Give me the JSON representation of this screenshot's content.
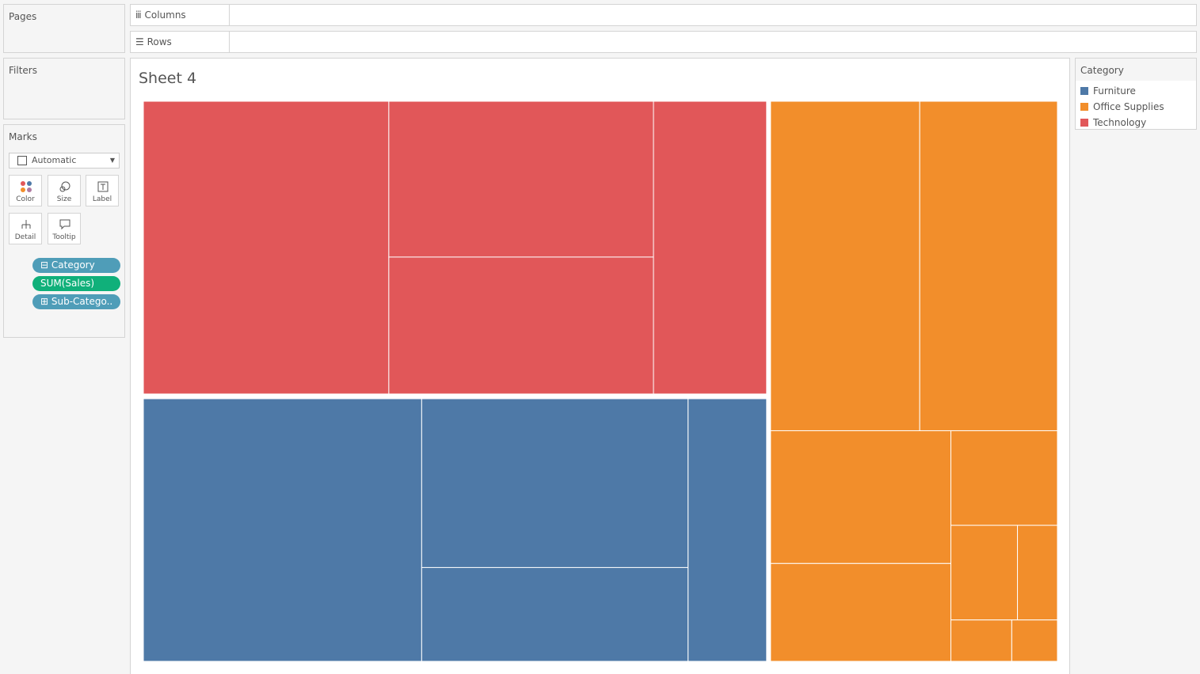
{
  "shelves": {
    "pages": "Pages",
    "filters": "Filters",
    "columns": "Columns",
    "rows": "Rows"
  },
  "marks": {
    "title": "Marks",
    "mark_type": "Automatic",
    "buttons": [
      "Color",
      "Size",
      "Label",
      "Detail",
      "Tooltip"
    ],
    "pills": [
      "Category",
      "SUM(Sales)",
      "Sub-Catego.."
    ]
  },
  "chart_data": {
    "type": "treemap",
    "title": "Sheet 4",
    "legend_title": "Category",
    "legend": "right",
    "series": [
      {
        "name": "Furniture",
        "color": "#4e79a7",
        "values": [
          117,
          72,
          40,
          33
        ]
      },
      {
        "name": "Office Supplies",
        "color": "#f28e2b",
        "values": [
          78,
          72,
          38,
          28,
          16,
          10,
          6,
          4,
          3
        ]
      },
      {
        "name": "Technology",
        "color": "#e15759",
        "values": [
          115,
          66,
          58,
          53
        ]
      }
    ]
  }
}
